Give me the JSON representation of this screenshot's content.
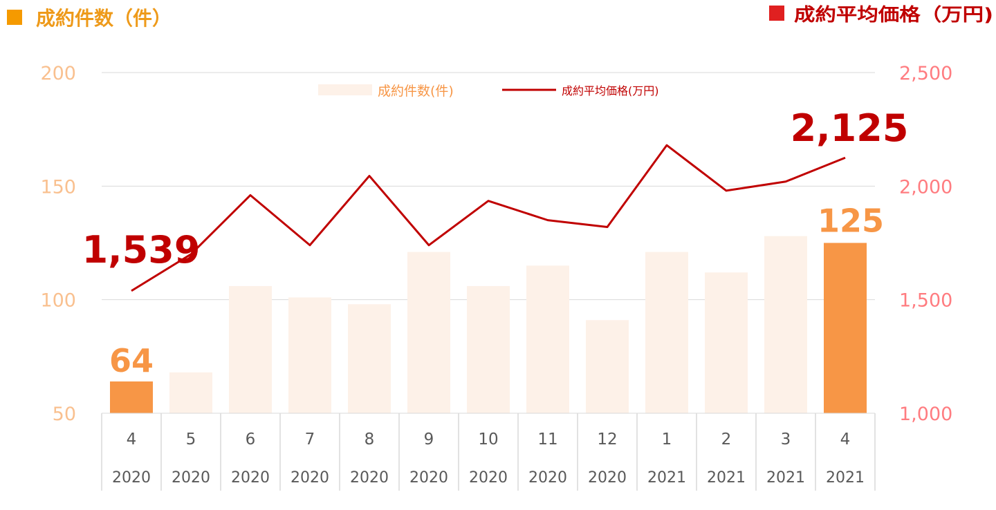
{
  "chart_data": {
    "type": "bar+line",
    "left_title": "成約件数（件）",
    "right_title": "成約平均価格（万円)",
    "legend": {
      "bar_label": "成約件数(件)",
      "line_label": "成約平均価格(万円)"
    },
    "categories": [
      {
        "month": "4",
        "year": "2020"
      },
      {
        "month": "5",
        "year": "2020"
      },
      {
        "month": "6",
        "year": "2020"
      },
      {
        "month": "7",
        "year": "2020"
      },
      {
        "month": "8",
        "year": "2020"
      },
      {
        "month": "9",
        "year": "2020"
      },
      {
        "month": "10",
        "year": "2020"
      },
      {
        "month": "11",
        "year": "2020"
      },
      {
        "month": "12",
        "year": "2020"
      },
      {
        "month": "1",
        "year": "2021"
      },
      {
        "month": "2",
        "year": "2021"
      },
      {
        "month": "3",
        "year": "2021"
      },
      {
        "month": "4",
        "year": "2021"
      }
    ],
    "bar_values": [
      64,
      68,
      106,
      101,
      98,
      121,
      106,
      115,
      91,
      121,
      112,
      128,
      125
    ],
    "line_values": [
      1539,
      1700,
      1960,
      1740,
      2045,
      1740,
      1935,
      1850,
      1820,
      2180,
      1980,
      2020,
      2125
    ],
    "highlighted_bars": [
      0,
      12
    ],
    "left_axis": {
      "min": 50,
      "max": 200,
      "ticks": [
        "50",
        "100",
        "150",
        "200"
      ]
    },
    "right_axis": {
      "min": 1000,
      "max": 2500,
      "ticks": [
        "1,000",
        "1,500",
        "2,000",
        "2,500"
      ]
    },
    "annotations": {
      "first_bar": "64",
      "last_bar": "125",
      "first_line": "1,539",
      "last_line": "2,125"
    },
    "colors": {
      "bar_muted": "#fdf1e8",
      "bar_highlight": "#f79646",
      "line": "#c00000",
      "left_axis_text": "#f9c08f",
      "right_axis_text": "#ff7c80",
      "left_title_marker": "#f59a00",
      "left_title_text": "#ee9a1a",
      "right_title_marker": "#e02020",
      "right_title_text": "#c00000",
      "grid": "#d9d9d9",
      "category_text": "#595959"
    }
  }
}
